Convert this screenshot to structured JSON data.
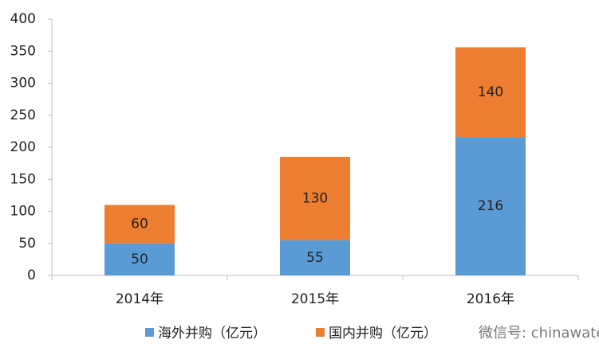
{
  "chart_data": {
    "type": "stacked_bar",
    "categories": [
      "2014年",
      "2015年",
      "2016年"
    ],
    "series": [
      {
        "name": "海外并购（亿元）",
        "color": "#5b9bd5",
        "values": [
          50,
          55,
          216
        ]
      },
      {
        "name": "国内并购（亿元）",
        "color": "#ed7d31",
        "values": [
          60,
          130,
          140
        ]
      }
    ],
    "ylim": [
      0,
      400
    ],
    "yticks": [
      0,
      50,
      100,
      150,
      200,
      250,
      300,
      350,
      400
    ],
    "legend": "bottom",
    "watermark": "微信号: chinawaternet"
  }
}
